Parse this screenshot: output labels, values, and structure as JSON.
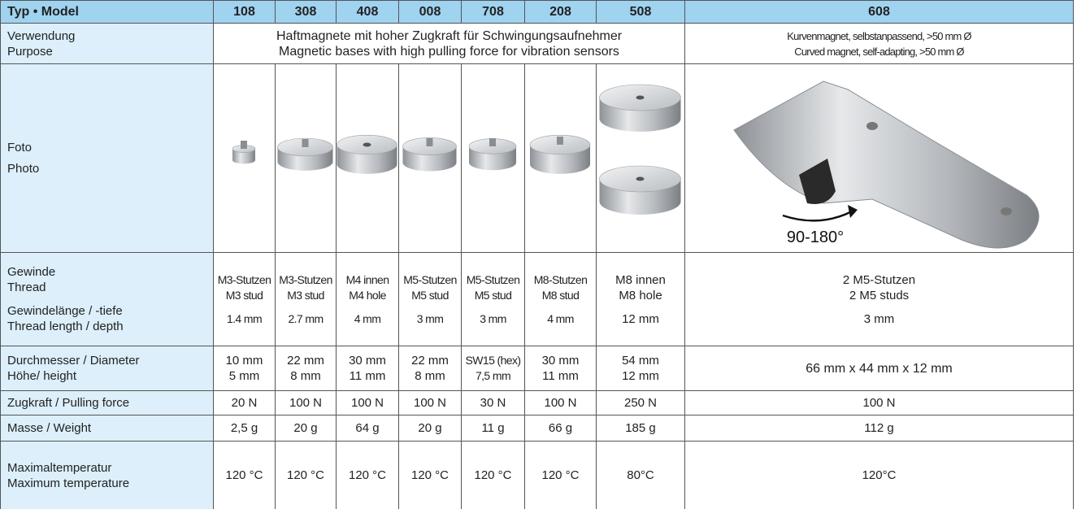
{
  "header": [
    "Typ • Model",
    "108",
    "308",
    "408",
    "008",
    "708",
    "208",
    "508",
    "608"
  ],
  "purpose": {
    "label": [
      "Verwendung",
      "Purpose"
    ],
    "common": [
      "Haftmagnete mit hoher Zugkraft für Schwingungsaufnehmer",
      "Magnetic bases with high pulling force for vibration sensors"
    ],
    "model_608": [
      "Kurvenmagnet, selbstanpassend, >50 mm Ø",
      "Curved magnet, self-adapting, >50 mm Ø"
    ]
  },
  "photo": {
    "label": [
      "Foto",
      "Photo"
    ],
    "annotation": "90-180°"
  },
  "thread": {
    "label": [
      "Gewinde",
      "Thread"
    ],
    "values": [
      [
        "M3-Stutzen",
        "M3 stud"
      ],
      [
        "M3-Stutzen",
        "M3 stud"
      ],
      [
        "M4 innen",
        "M4 hole"
      ],
      [
        "M5-Stutzen",
        "M5 stud"
      ],
      [
        "M5-Stutzen",
        "M5 stud"
      ],
      [
        "M8-Stutzen",
        "M8 stud"
      ],
      [
        "M8 innen",
        "M8 hole"
      ],
      [
        "2 M5-Stutzen",
        "2 M5 studs"
      ]
    ]
  },
  "thread_length": {
    "label": [
      "Gewindelänge / -tiefe",
      "Thread length / depth"
    ],
    "values": [
      "1.4 mm",
      "2.7 mm",
      "4 mm",
      "3 mm",
      "3 mm",
      "4 mm",
      "12 mm",
      "3 mm"
    ]
  },
  "dimensions": {
    "label": [
      "Durchmesser / Diameter",
      "Höhe/ height"
    ],
    "values": [
      [
        "10 mm",
        "5 mm"
      ],
      [
        "22 mm",
        "8 mm"
      ],
      [
        "30 mm",
        "11 mm"
      ],
      [
        "22 mm",
        "8 mm"
      ],
      [
        "SW15 (hex)",
        "7,5 mm"
      ],
      [
        "30 mm",
        "11 mm"
      ],
      [
        "54 mm",
        "12 mm"
      ],
      [
        "66 mm x 44 mm x 12 mm"
      ]
    ]
  },
  "force": {
    "label": [
      "Zugkraft / Pulling force"
    ],
    "values": [
      "20 N",
      "100 N",
      "100 N",
      "100 N",
      "30 N",
      "100 N",
      "250 N",
      "100 N"
    ]
  },
  "weight": {
    "label": [
      "Masse / Weight"
    ],
    "values": [
      "2,5 g",
      "20 g",
      "64 g",
      "20 g",
      "11 g",
      "66 g",
      "185 g",
      "112 g"
    ]
  },
  "max_temp": {
    "label": [
      "Maximaltemperatur",
      "Maximum temperature"
    ],
    "values": [
      "120 °C",
      "120 °C",
      "120 °C",
      "120 °C",
      "120 °C",
      "120 °C",
      "80°C",
      "120°C"
    ]
  }
}
